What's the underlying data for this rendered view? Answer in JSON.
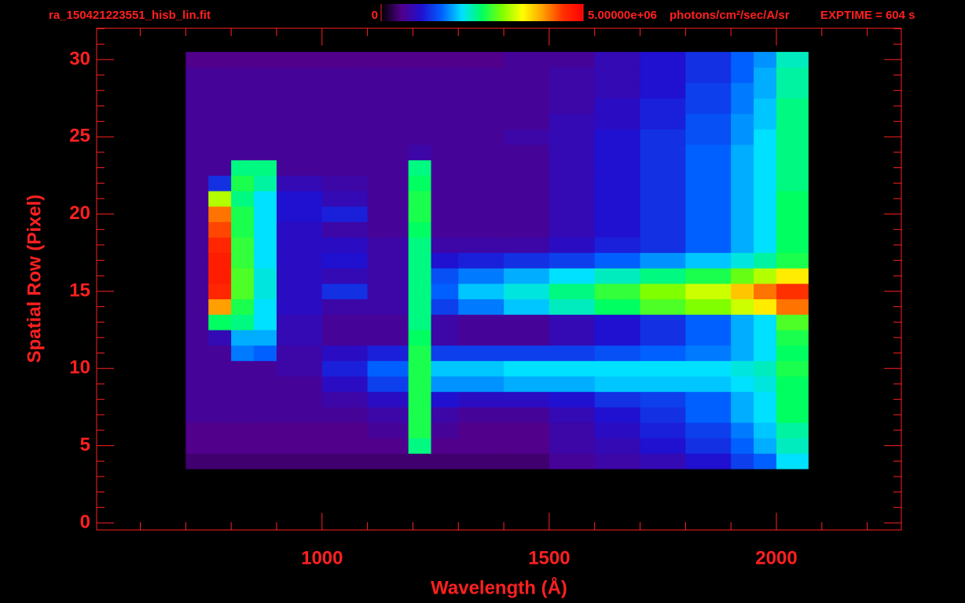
{
  "chart_data": {
    "type": "heatmap",
    "title": "ra_150421223551_hisb_lin.fit",
    "annotation": "EXPTIME = 604 s",
    "x_label": "Wavelength (Å)",
    "y_label": "Spatial Row (Pixel)",
    "colorbar_label": "photons/cm²/sec/A/sr",
    "clim": [
      0,
      5000000
    ],
    "colorbar_ticks": [
      0,
      {
        "value": 5000000,
        "label": "5.00000e+06"
      }
    ],
    "axis_color": "#ff2020",
    "xlim": [
      504,
      2275
    ],
    "ylim": [
      -0.46,
      32.03
    ],
    "xticks": [
      1000,
      1500,
      2000
    ],
    "xminorticks": [
      600,
      700,
      800,
      900,
      1100,
      1200,
      1300,
      1400,
      1600,
      1700,
      1800,
      1900,
      2100,
      2200
    ],
    "yticks": [
      0,
      5,
      10,
      15,
      20,
      25,
      30
    ],
    "yminorticks": [
      1,
      2,
      3,
      4,
      6,
      7,
      8,
      9,
      11,
      12,
      13,
      14,
      16,
      17,
      18,
      19,
      21,
      22,
      23,
      24,
      26,
      27,
      28,
      29,
      31,
      32
    ],
    "xbins": [
      700,
      750,
      800,
      850,
      900,
      1000,
      1100,
      1190,
      1240,
      1300,
      1400,
      1500,
      1600,
      1700,
      1800,
      1900,
      1950,
      2000,
      2070
    ],
    "y": [
      4,
      5,
      6,
      7,
      8,
      9,
      10,
      11,
      12,
      13,
      14,
      15,
      16,
      17,
      18,
      19,
      20,
      21,
      22,
      23,
      24,
      25,
      26,
      27,
      28,
      29,
      30
    ],
    "values": [
      [
        400000.0,
        400000.0,
        400000.0,
        400000.0,
        400000.0,
        400000.0,
        400000.0,
        400000.0,
        400000.0,
        400000.0,
        400000.0,
        600000.0,
        700000.0,
        800000.0,
        1000000.0,
        1300000.0,
        1500000.0,
        2000000.0
      ],
      [
        500000.0,
        500000.0,
        500000.0,
        500000.0,
        500000.0,
        500000.0,
        500000.0,
        2400000.0,
        500000.0,
        500000.0,
        500000.0,
        700000.0,
        800000.0,
        1000000.0,
        1200000.0,
        1500000.0,
        1800000.0,
        2200000.0
      ],
      [
        500000.0,
        500000.0,
        500000.0,
        500000.0,
        500000.0,
        500000.0,
        600000.0,
        2600000.0,
        600000.0,
        500000.0,
        500000.0,
        700000.0,
        900000.0,
        1100000.0,
        1300000.0,
        1600000.0,
        1900000.0,
        2300000.0
      ],
      [
        600000.0,
        600000.0,
        600000.0,
        600000.0,
        600000.0,
        600000.0,
        700000.0,
        2600000.0,
        700000.0,
        600000.0,
        600000.0,
        800000.0,
        1000000.0,
        1200000.0,
        1500000.0,
        1800000.0,
        2000000.0,
        2500000.0
      ],
      [
        600000.0,
        600000.0,
        600000.0,
        600000.0,
        600000.0,
        700000.0,
        900000.0,
        2600000.0,
        1000000.0,
        900000.0,
        900000.0,
        1000000.0,
        1200000.0,
        1300000.0,
        1500000.0,
        1800000.0,
        2000000.0,
        2500000.0
      ],
      [
        600000.0,
        600000.0,
        600000.0,
        600000.0,
        600000.0,
        900000.0,
        1300000.0,
        2600000.0,
        1700000.0,
        1700000.0,
        1800000.0,
        1800000.0,
        1900000.0,
        1900000.0,
        1900000.0,
        2000000.0,
        2100000.0,
        2500000.0
      ],
      [
        600000.0,
        600000.0,
        600000.0,
        600000.0,
        700000.0,
        1100000.0,
        1500000.0,
        2600000.0,
        1900000.0,
        1900000.0,
        2000000.0,
        2000000.0,
        2000000.0,
        2000000.0,
        2000000.0,
        2100000.0,
        2200000.0,
        2600000.0
      ],
      [
        600000.0,
        600000.0,
        1600000.0,
        1500000.0,
        700000.0,
        900000.0,
        1100000.0,
        2600000.0,
        1300000.0,
        1300000.0,
        1300000.0,
        1300000.0,
        1400000.0,
        1500000.0,
        1600000.0,
        1800000.0,
        2000000.0,
        2500000.0
      ],
      [
        600000.0,
        800000.0,
        1800000.0,
        1800000.0,
        800000.0,
        600000.0,
        600000.0,
        2500000.0,
        700000.0,
        600000.0,
        600000.0,
        800000.0,
        1000000.0,
        1200000.0,
        1500000.0,
        1800000.0,
        2000000.0,
        2600000.0
      ],
      [
        600000.0,
        2500000.0,
        2400000.0,
        2000000.0,
        800000.0,
        600000.0,
        600000.0,
        2400000.0,
        700000.0,
        600000.0,
        600000.0,
        800000.0,
        1000000.0,
        1200000.0,
        1500000.0,
        1800000.0,
        2000000.0,
        2800000.0
      ],
      [
        600000.0,
        4000000.0,
        2600000.0,
        2000000.0,
        900000.0,
        700000.0,
        700000.0,
        2400000.0,
        1300000.0,
        1600000.0,
        1900000.0,
        2200000.0,
        2500000.0,
        2800000.0,
        3000000.0,
        3300000.0,
        3600000.0,
        4200000.0
      ],
      [
        600000.0,
        4600000.0,
        2800000.0,
        2100000.0,
        900000.0,
        1200000.0,
        700000.0,
        2400000.0,
        1500000.0,
        1900000.0,
        2100000.0,
        2400000.0,
        2700000.0,
        3000000.0,
        3300000.0,
        3800000.0,
        4200000.0,
        4500000.0
      ],
      [
        600000.0,
        4700000.0,
        2800000.0,
        2100000.0,
        900000.0,
        800000.0,
        700000.0,
        2400000.0,
        1400000.0,
        1600000.0,
        1800000.0,
        2000000.0,
        2200000.0,
        2400000.0,
        2600000.0,
        2900000.0,
        3200000.0,
        3600000.0
      ],
      [
        600000.0,
        4700000.0,
        2700000.0,
        2000000.0,
        900000.0,
        1000000.0,
        700000.0,
        2400000.0,
        1000000.0,
        1100000.0,
        1200000.0,
        1300000.0,
        1500000.0,
        1700000.0,
        1900000.0,
        2100000.0,
        2300000.0,
        2600000.0
      ],
      [
        600000.0,
        4600000.0,
        2700000.0,
        2000000.0,
        900000.0,
        900000.0,
        700000.0,
        2400000.0,
        700000.0,
        700000.0,
        700000.0,
        900000.0,
        1100000.0,
        1200000.0,
        1500000.0,
        1800000.0,
        2000000.0,
        2500000.0
      ],
      [
        600000.0,
        4400000.0,
        2600000.0,
        2000000.0,
        900000.0,
        700000.0,
        600000.0,
        2500000.0,
        600000.0,
        600000.0,
        600000.0,
        800000.0,
        1000000.0,
        1200000.0,
        1500000.0,
        1800000.0,
        2000000.0,
        2500000.0
      ],
      [
        600000.0,
        4200000.0,
        2600000.0,
        2000000.0,
        1000000.0,
        1100000.0,
        600000.0,
        2600000.0,
        600000.0,
        600000.0,
        600000.0,
        800000.0,
        1000000.0,
        1200000.0,
        1500000.0,
        1800000.0,
        2000000.0,
        2500000.0
      ],
      [
        600000.0,
        3200000.0,
        2400000.0,
        2000000.0,
        1000000.0,
        800000.0,
        600000.0,
        2600000.0,
        600000.0,
        600000.0,
        600000.0,
        800000.0,
        1000000.0,
        1200000.0,
        1500000.0,
        1800000.0,
        2000000.0,
        2500000.0
      ],
      [
        600000.0,
        1200000.0,
        2600000.0,
        2300000.0,
        800000.0,
        700000.0,
        600000.0,
        2500000.0,
        600000.0,
        600000.0,
        600000.0,
        800000.0,
        1000000.0,
        1200000.0,
        1500000.0,
        1800000.0,
        2000000.0,
        2400000.0
      ],
      [
        600000.0,
        600000.0,
        2400000.0,
        2400000.0,
        600000.0,
        600000.0,
        600000.0,
        2400000.0,
        600000.0,
        600000.0,
        600000.0,
        800000.0,
        1000000.0,
        1200000.0,
        1500000.0,
        1800000.0,
        2000000.0,
        2400000.0
      ],
      [
        600000.0,
        600000.0,
        600000.0,
        600000.0,
        600000.0,
        600000.0,
        600000.0,
        700000.0,
        600000.0,
        600000.0,
        600000.0,
        800000.0,
        1000000.0,
        1200000.0,
        1500000.0,
        1800000.0,
        2000000.0,
        2400000.0
      ],
      [
        600000.0,
        600000.0,
        600000.0,
        600000.0,
        600000.0,
        600000.0,
        600000.0,
        600000.0,
        600000.0,
        600000.0,
        700000.0,
        800000.0,
        1000000.0,
        1200000.0,
        1400000.0,
        1700000.0,
        2000000.0,
        2400000.0
      ],
      [
        600000.0,
        600000.0,
        600000.0,
        600000.0,
        600000.0,
        600000.0,
        600000.0,
        600000.0,
        600000.0,
        600000.0,
        600000.0,
        800000.0,
        900000.0,
        1100000.0,
        1400000.0,
        1700000.0,
        1900000.0,
        2400000.0
      ],
      [
        600000.0,
        600000.0,
        600000.0,
        600000.0,
        600000.0,
        600000.0,
        600000.0,
        600000.0,
        600000.0,
        600000.0,
        600000.0,
        700000.0,
        900000.0,
        1100000.0,
        1300000.0,
        1600000.0,
        1900000.0,
        2400000.0
      ],
      [
        600000.0,
        600000.0,
        600000.0,
        600000.0,
        600000.0,
        600000.0,
        600000.0,
        600000.0,
        600000.0,
        600000.0,
        600000.0,
        700000.0,
        800000.0,
        1000000.0,
        1300000.0,
        1600000.0,
        1800000.0,
        2300000.0
      ],
      [
        600000.0,
        600000.0,
        600000.0,
        600000.0,
        600000.0,
        600000.0,
        600000.0,
        600000.0,
        600000.0,
        600000.0,
        600000.0,
        700000.0,
        800000.0,
        1000000.0,
        1200000.0,
        1500000.0,
        1800000.0,
        2300000.0
      ],
      [
        500000.0,
        500000.0,
        500000.0,
        500000.0,
        500000.0,
        500000.0,
        500000.0,
        500000.0,
        500000.0,
        500000.0,
        600000.0,
        600000.0,
        800000.0,
        1000000.0,
        1200000.0,
        1500000.0,
        1700000.0,
        2200000.0
      ]
    ]
  }
}
